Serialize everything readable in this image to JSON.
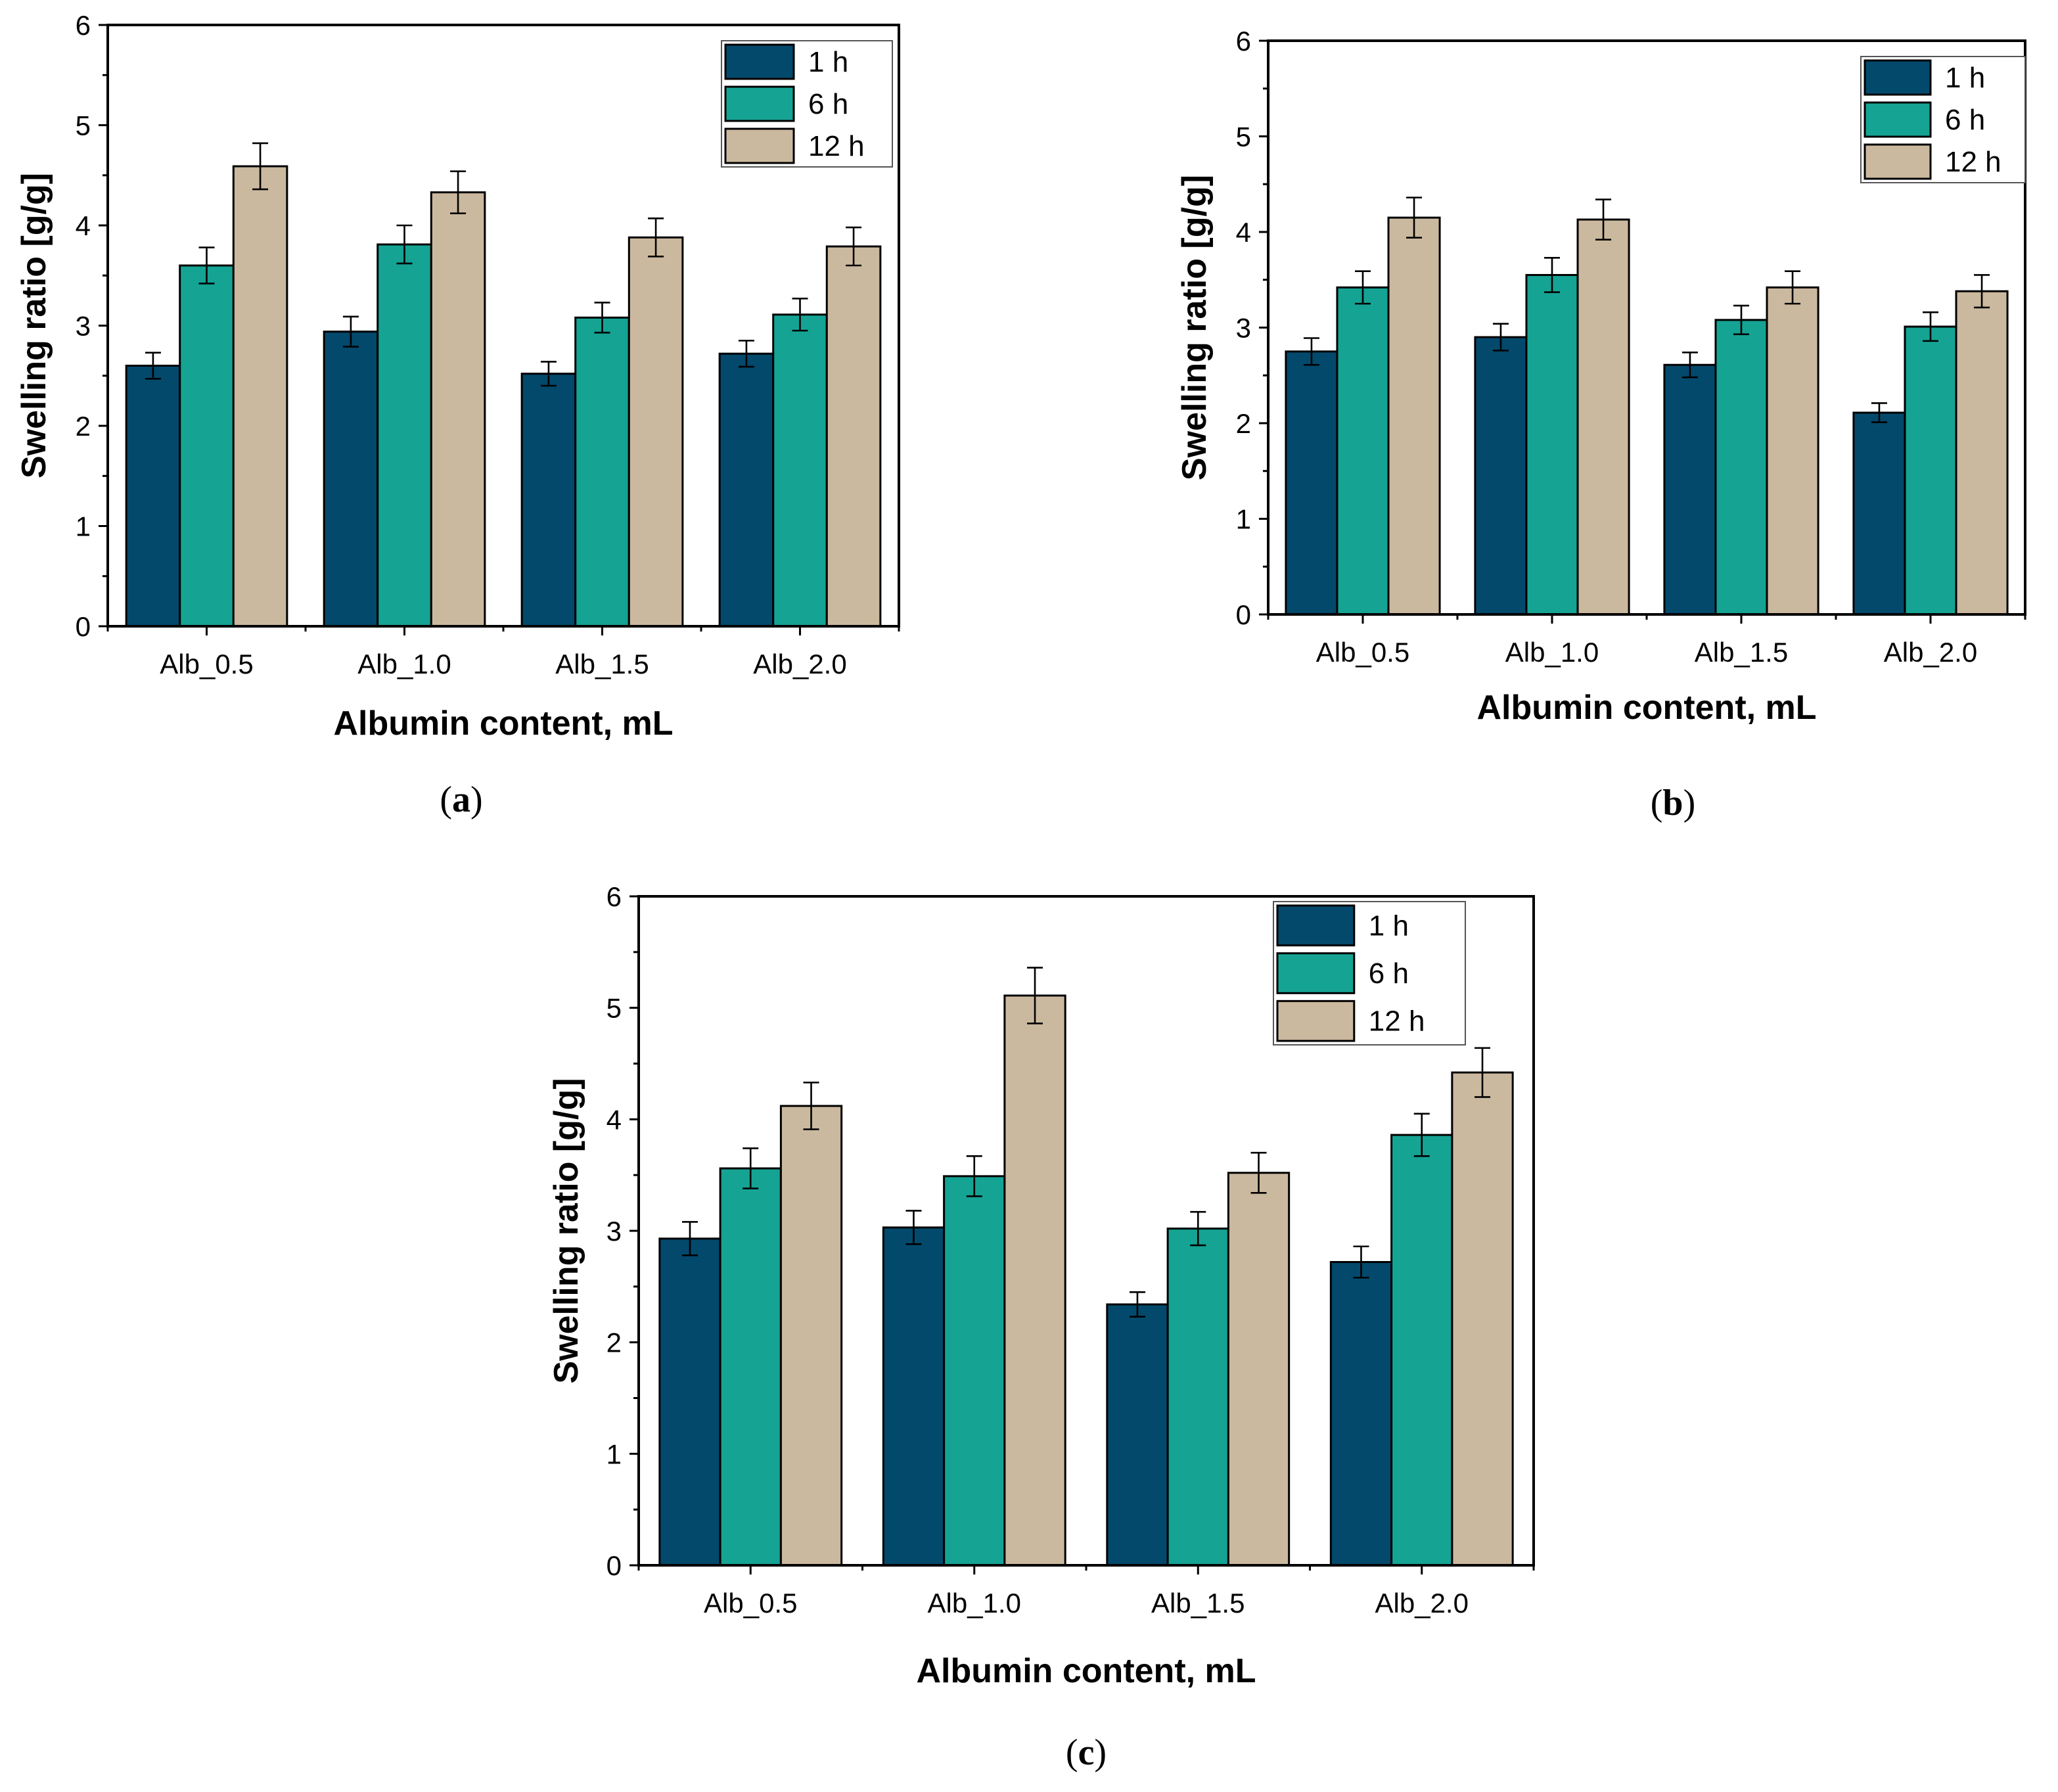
{
  "figure": {
    "panel_labels": [
      {
        "prefix": "(",
        "letter": "a",
        "suffix": ")"
      },
      {
        "prefix": "(",
        "letter": "b",
        "suffix": ")"
      },
      {
        "prefix": "(",
        "letter": "c",
        "suffix": ")"
      }
    ],
    "colors": {
      "1 h": "#03496c",
      "6 h": "#15a394",
      "12 h": "#cbb99f",
      "axis": "#000000",
      "background": "#ffffff"
    }
  },
  "chart_data": [
    {
      "id": "a",
      "type": "bar",
      "title": "",
      "xlabel": "Albumin content, mL",
      "ylabel": "Swelling ratio [g/g]",
      "ylim": [
        0,
        6
      ],
      "yticks": [
        "0",
        "1",
        "2",
        "3",
        "4",
        "5",
        "6"
      ],
      "categories": [
        "Alb_0.5",
        "Alb_1.0",
        "Alb_1.5",
        "Alb_2.0"
      ],
      "legend_position": "top-right",
      "grid": false,
      "series": [
        {
          "name": "1 h",
          "values": [
            2.6,
            2.94,
            2.52,
            2.72
          ],
          "errors": [
            0.13,
            0.15,
            0.12,
            0.13
          ]
        },
        {
          "name": "6 h",
          "values": [
            3.6,
            3.81,
            3.08,
            3.11
          ],
          "errors": [
            0.18,
            0.19,
            0.15,
            0.16
          ]
        },
        {
          "name": "12 h",
          "values": [
            4.59,
            4.33,
            3.88,
            3.79
          ],
          "errors": [
            0.23,
            0.21,
            0.19,
            0.19
          ]
        }
      ]
    },
    {
      "id": "b",
      "type": "bar",
      "title": "",
      "xlabel": "Albumin content, mL",
      "ylabel": "Swelling ratio [g/g]",
      "ylim": [
        0,
        6
      ],
      "yticks": [
        "0",
        "1",
        "2",
        "3",
        "4",
        "5",
        "6"
      ],
      "categories": [
        "Alb_0.5",
        "Alb_1.0",
        "Alb_1.5",
        "Alb_2.0"
      ],
      "legend_position": "top-right",
      "grid": false,
      "series": [
        {
          "name": "1 h",
          "values": [
            2.75,
            2.9,
            2.61,
            2.11
          ],
          "errors": [
            0.14,
            0.14,
            0.13,
            0.1
          ]
        },
        {
          "name": "6 h",
          "values": [
            3.42,
            3.55,
            3.08,
            3.01
          ],
          "errors": [
            0.17,
            0.18,
            0.15,
            0.15
          ]
        },
        {
          "name": "12 h",
          "values": [
            4.15,
            4.13,
            3.42,
            3.38
          ],
          "errors": [
            0.21,
            0.21,
            0.17,
            0.17
          ]
        }
      ]
    },
    {
      "id": "c",
      "type": "bar",
      "title": "",
      "xlabel": "Albumin content, mL",
      "ylabel": "Swelling ratio [g/g]",
      "ylim": [
        0,
        6
      ],
      "yticks": [
        "0",
        "1",
        "2",
        "3",
        "4",
        "5",
        "6"
      ],
      "categories": [
        "Alb_0.5",
        "Alb_1.0",
        "Alb_1.5",
        "Alb_2.0"
      ],
      "legend_position": "top-right",
      "grid": false,
      "series": [
        {
          "name": "1 h",
          "values": [
            2.93,
            3.03,
            2.34,
            2.72
          ],
          "errors": [
            0.15,
            0.15,
            0.11,
            0.14
          ]
        },
        {
          "name": "6 h",
          "values": [
            3.56,
            3.49,
            3.02,
            3.86
          ],
          "errors": [
            0.18,
            0.18,
            0.15,
            0.19
          ]
        },
        {
          "name": "12 h",
          "values": [
            4.12,
            5.11,
            3.52,
            4.42
          ],
          "errors": [
            0.21,
            0.25,
            0.18,
            0.22
          ]
        }
      ]
    }
  ]
}
